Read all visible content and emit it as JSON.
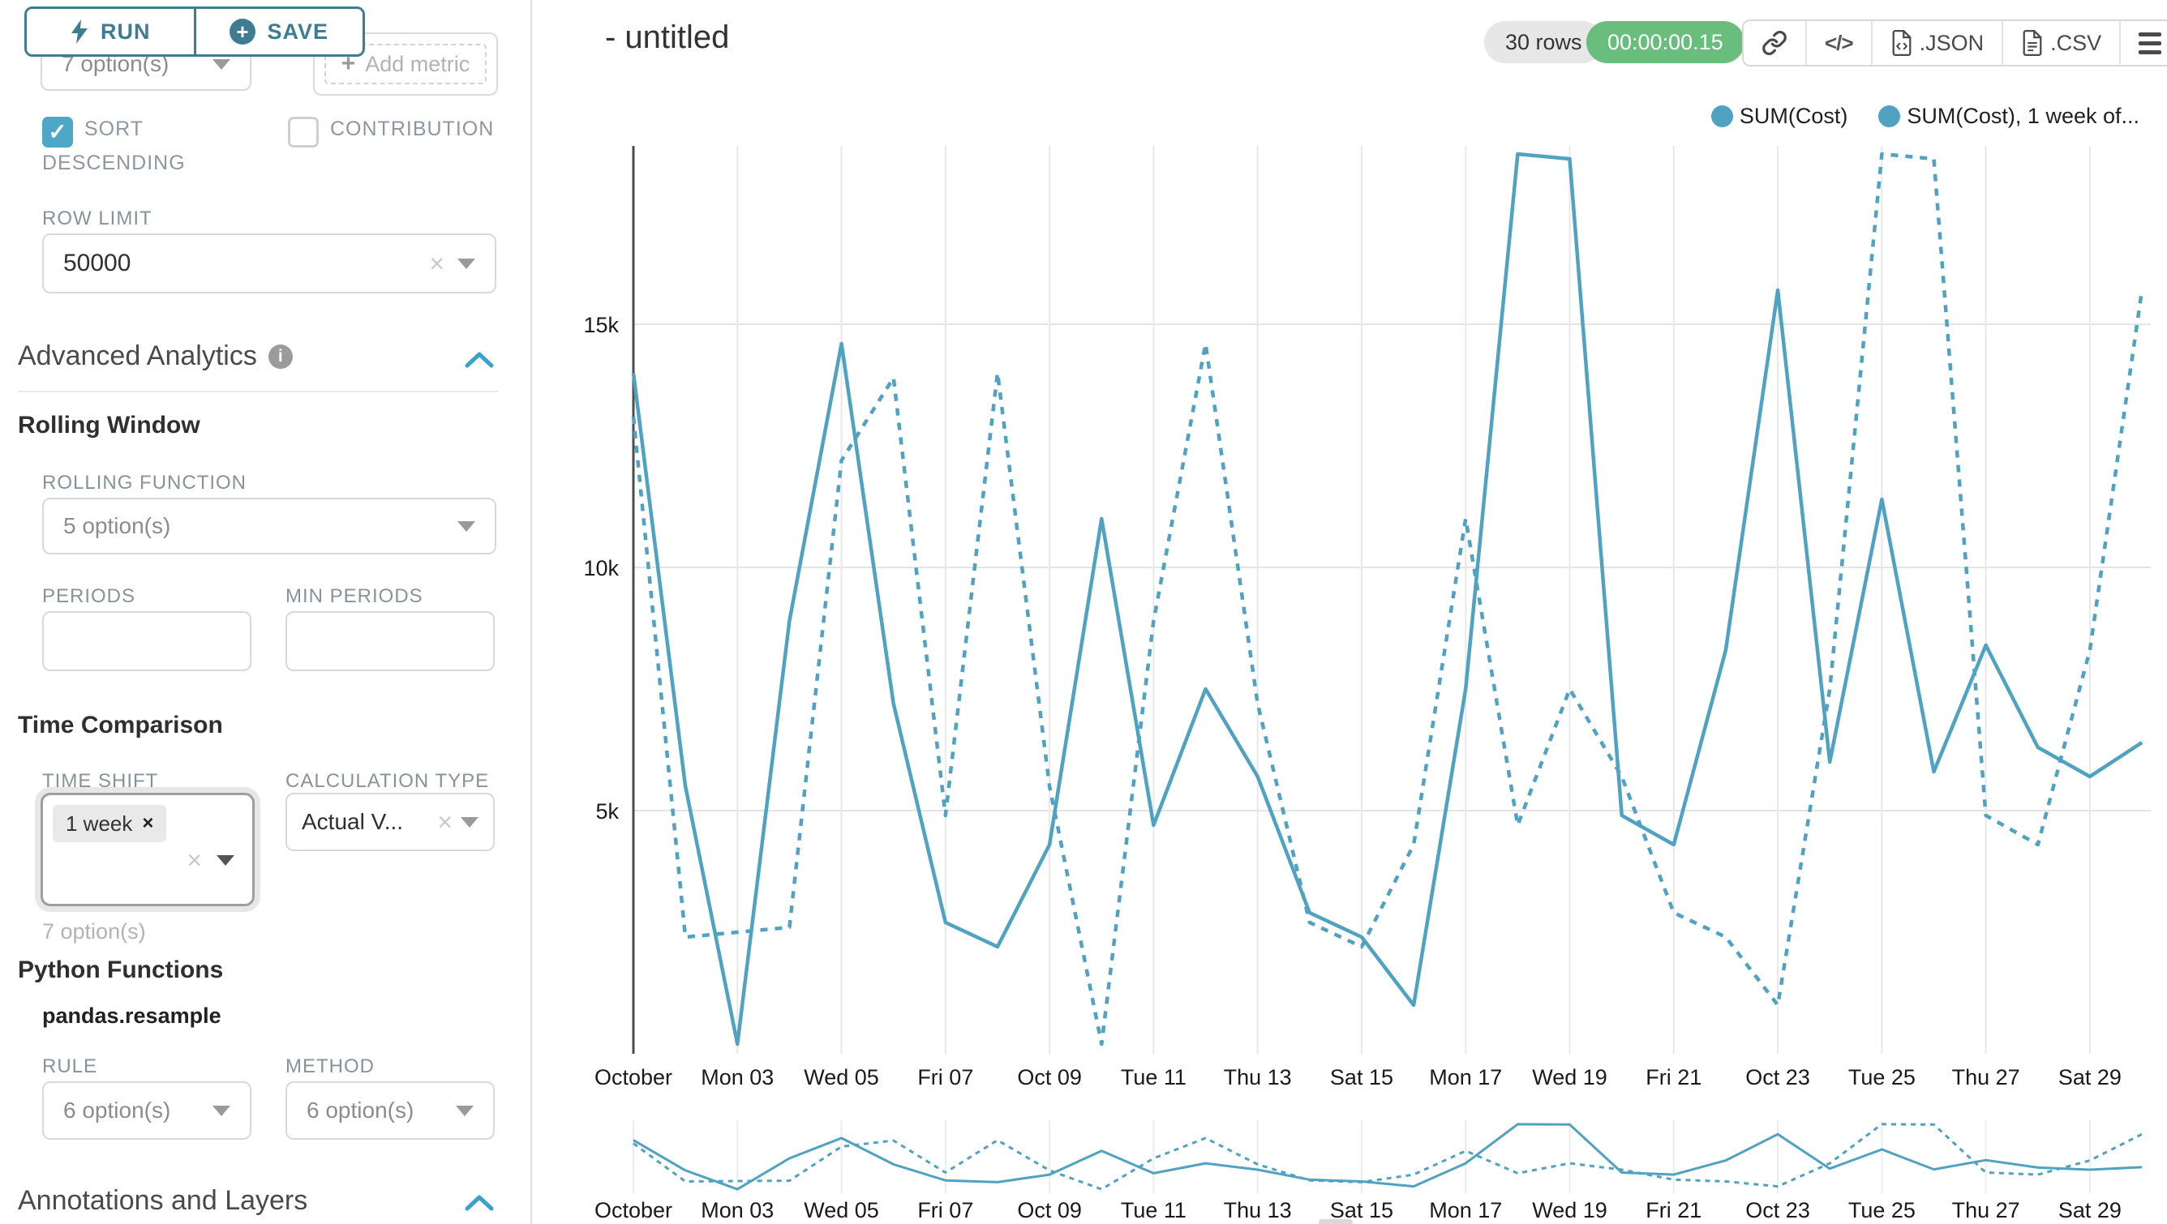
{
  "sidebar": {
    "run_label": "RUN",
    "save_label": "SAVE",
    "metric_select_placeholder": "7 option(s)",
    "add_metric_label": "Add metric",
    "sort_descending_label": "SORT DESCENDING",
    "contribution_label": "CONTRIBUTION",
    "row_limit_label": "ROW LIMIT",
    "row_limit_value": "50000",
    "advanced_analytics_title": "Advanced Analytics",
    "rolling_window_title": "Rolling Window",
    "rolling_function_label": "ROLLING FUNCTION",
    "rolling_function_placeholder": "5 option(s)",
    "periods_label": "PERIODS",
    "min_periods_label": "MIN PERIODS",
    "time_comparison_title": "Time Comparison",
    "time_shift_label": "TIME SHIFT",
    "time_shift_tag": "1 week",
    "time_shift_hint": "7 option(s)",
    "calculation_type_label": "CALCULATION TYPE",
    "calculation_type_value": "Actual V...",
    "python_functions_title": "Python Functions",
    "python_functions_subtitle": "pandas.resample",
    "rule_label": "RULE",
    "rule_placeholder": "6 option(s)",
    "method_label": "METHOD",
    "method_placeholder": "6 option(s)",
    "annotations_title": "Annotations and Layers"
  },
  "header": {
    "title": "- untitled",
    "rows_badge": "30 rows",
    "duration_badge": "00:00:00.15",
    "code_button_glyph": "</>",
    "export_json_label": ".JSON",
    "export_csv_label": ".CSV"
  },
  "chart_data": {
    "type": "line",
    "title": "",
    "xlabel": "",
    "ylabel": "",
    "x_description": "daily values, October 01 - October 30",
    "x_tick_days": [
      1,
      3,
      5,
      7,
      9,
      11,
      13,
      15,
      17,
      19,
      21,
      23,
      25,
      27,
      29
    ],
    "x_tick_labels": [
      "October",
      "Mon 03",
      "Wed 05",
      "Fri 07",
      "Oct 09",
      "Tue 11",
      "Thu 13",
      "Sat 15",
      "Mon 17",
      "Wed 19",
      "Fri 21",
      "Oct 23",
      "Tue 25",
      "Thu 27",
      "Sat 29"
    ],
    "y_tick_values": [
      5000,
      10000,
      15000
    ],
    "y_tick_labels": [
      "5k",
      "10k",
      "15k"
    ],
    "ylim": [
      0,
      18700
    ],
    "grid": true,
    "legend_position": "top-right",
    "color": "#4fa2c2",
    "has_mini_chart": true,
    "series": [
      {
        "name": "SUM(Cost)",
        "line_style": "solid",
        "values": [
          14000,
          5500,
          200,
          8900,
          14600,
          7200,
          2700,
          2200,
          4300,
          11000,
          4700,
          7500,
          5700,
          2900,
          2400,
          1000,
          7500,
          18500,
          18400,
          4900,
          4300,
          8300,
          15700,
          6000,
          11400,
          5800,
          8400,
          6300,
          5700,
          6400
        ]
      },
      {
        "name": "SUM(Cost), 1 week of...",
        "line_style": "dashed",
        "values": [
          13100,
          2400,
          2500,
          2600,
          12200,
          13900,
          4900,
          14000,
          5500,
          200,
          8900,
          14600,
          7200,
          2700,
          2200,
          4300,
          11000,
          4700,
          7500,
          5700,
          2900,
          2400,
          1000,
          7500,
          18500,
          18400,
          4900,
          4300,
          8300,
          15700
        ]
      }
    ]
  }
}
